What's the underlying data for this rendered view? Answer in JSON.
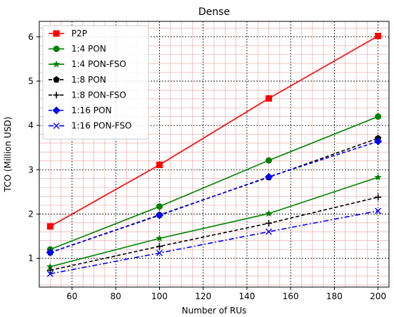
{
  "chart_data": {
    "type": "line",
    "title": "Dense",
    "xlabel": "Number of RUs",
    "ylabel": "TCO (Million USD)",
    "x": [
      50,
      100,
      150,
      200
    ],
    "xlim": [
      45,
      205
    ],
    "ylim": [
      0.35,
      6.35
    ],
    "xticks": [
      60,
      80,
      100,
      120,
      140,
      160,
      180,
      200
    ],
    "yticks": [
      1,
      2,
      3,
      4,
      5,
      6
    ],
    "grid": true,
    "legend_position": "top-left",
    "series": [
      {
        "name": "P2P",
        "values": [
          1.72,
          3.11,
          4.61,
          6.02
        ],
        "color": "#ff0000",
        "dash": "solid",
        "marker": "square"
      },
      {
        "name": "1:4 PON",
        "values": [
          1.2,
          2.17,
          3.21,
          4.2
        ],
        "color": "#008000",
        "dash": "solid",
        "marker": "circle"
      },
      {
        "name": "1:4 PON-FSO",
        "values": [
          0.81,
          1.45,
          2.01,
          2.83
        ],
        "color": "#008000",
        "dash": "solid",
        "marker": "star"
      },
      {
        "name": "1:8 PON",
        "values": [
          1.13,
          1.98,
          2.83,
          3.71
        ],
        "color": "#000000",
        "dash": "dashed",
        "marker": "pentagon"
      },
      {
        "name": "1:8 PON-FSO",
        "values": [
          0.73,
          1.27,
          1.79,
          2.38
        ],
        "color": "#000000",
        "dash": "dashed",
        "marker": "plus"
      },
      {
        "name": "1:16 PON",
        "values": [
          1.13,
          1.97,
          2.84,
          3.64
        ],
        "color": "#0000ff",
        "dash": "dashed",
        "marker": "diamond"
      },
      {
        "name": "1:16 PON-FSO",
        "values": [
          0.65,
          1.12,
          1.6,
          2.07
        ],
        "color": "#0000ff",
        "dash": "dashdot",
        "marker": "x"
      }
    ]
  }
}
